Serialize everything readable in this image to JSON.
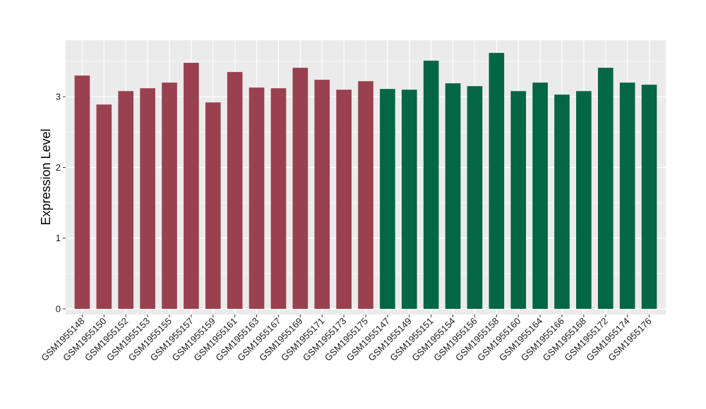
{
  "chart_data": {
    "type": "bar",
    "title": "",
    "xlabel": "",
    "ylabel": "Expression Level",
    "ylim": [
      -0.08,
      3.8
    ],
    "yticks": [
      0,
      1,
      2,
      3
    ],
    "grid": true,
    "legend": "none",
    "categories": [
      "GSM1955148",
      "GSM1955150",
      "GSM1955152",
      "GSM1955153",
      "GSM1955155",
      "GSM1955157",
      "GSM1955159",
      "GSM1955161",
      "GSM1955163",
      "GSM1955167",
      "GSM1955169",
      "GSM1955171",
      "GSM1955173",
      "GSM1955175",
      "GSM1955147",
      "GSM1955149",
      "GSM1955151",
      "GSM1955154",
      "GSM1955156",
      "GSM1955158",
      "GSM1955160",
      "GSM1955164",
      "GSM1955166",
      "GSM1955168",
      "GSM1955172",
      "GSM1955174",
      "GSM1955176"
    ],
    "values": [
      3.3,
      2.89,
      3.08,
      3.12,
      3.2,
      3.48,
      2.92,
      3.35,
      3.13,
      3.12,
      3.41,
      3.24,
      3.1,
      3.22,
      3.11,
      3.1,
      3.51,
      3.19,
      3.15,
      3.62,
      3.08,
      3.2,
      3.03,
      3.08,
      3.41,
      3.2,
      3.17
    ],
    "bar_colors": [
      "#99414F",
      "#99414F",
      "#99414F",
      "#99414F",
      "#99414F",
      "#99414F",
      "#99414F",
      "#99414F",
      "#99414F",
      "#99414F",
      "#99414F",
      "#99414F",
      "#99414F",
      "#99414F",
      "#036645",
      "#036645",
      "#036645",
      "#036645",
      "#036645",
      "#036645",
      "#036645",
      "#036645",
      "#036645",
      "#036645",
      "#036645",
      "#036645",
      "#036645"
    ]
  },
  "colors": {
    "panel_background": "#EBEBEB",
    "grid_major": "#FFFFFF",
    "group_a": "#99414F",
    "group_b": "#036645"
  }
}
